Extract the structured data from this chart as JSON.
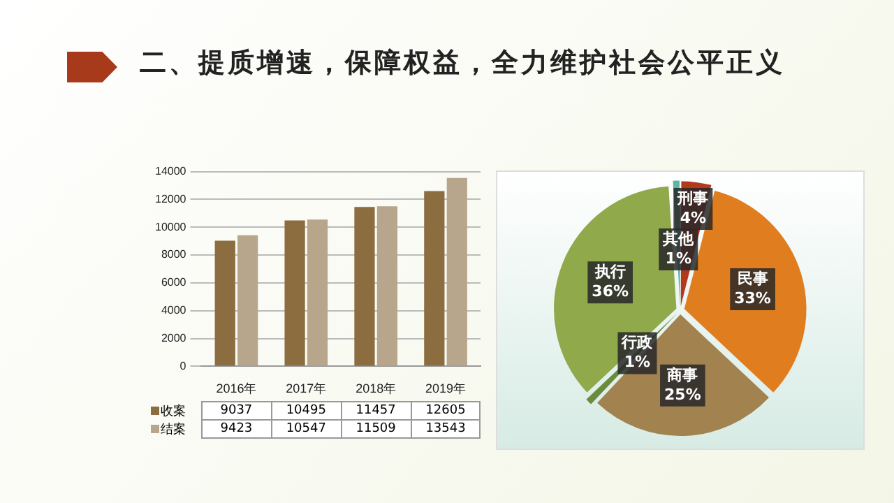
{
  "chart_data": [
    {
      "type": "bar",
      "title": "二、提质增速，保障权益，全力维护社会公平正义",
      "categories": [
        "2016年",
        "2017年",
        "2018年",
        "2019年"
      ],
      "series": [
        {
          "name": "收案",
          "color": "#8b6d40",
          "values": [
            9037,
            10495,
            11457,
            12605
          ]
        },
        {
          "name": "结案",
          "color": "#b8a68c",
          "values": [
            9423,
            10547,
            11509,
            13543
          ]
        }
      ],
      "ylim": [
        0,
        14000
      ],
      "yticks": [
        0,
        2000,
        4000,
        6000,
        8000,
        10000,
        12000,
        14000
      ],
      "grid": "y",
      "legend": "bottom",
      "data_labels": true
    },
    {
      "type": "pie",
      "categories": [
        "刑事",
        "民事",
        "商事",
        "行政",
        "执行",
        "其他"
      ],
      "values": [
        4,
        33,
        25,
        1,
        36,
        1
      ],
      "value_labels": [
        "4%",
        "33%",
        "25%",
        "1%",
        "36%",
        "1%"
      ],
      "colors": [
        "#b3391c",
        "#e07d1f",
        "#a2824f",
        "#6b8c3c",
        "#8fa94b",
        "#5fb5a3"
      ]
    }
  ]
}
